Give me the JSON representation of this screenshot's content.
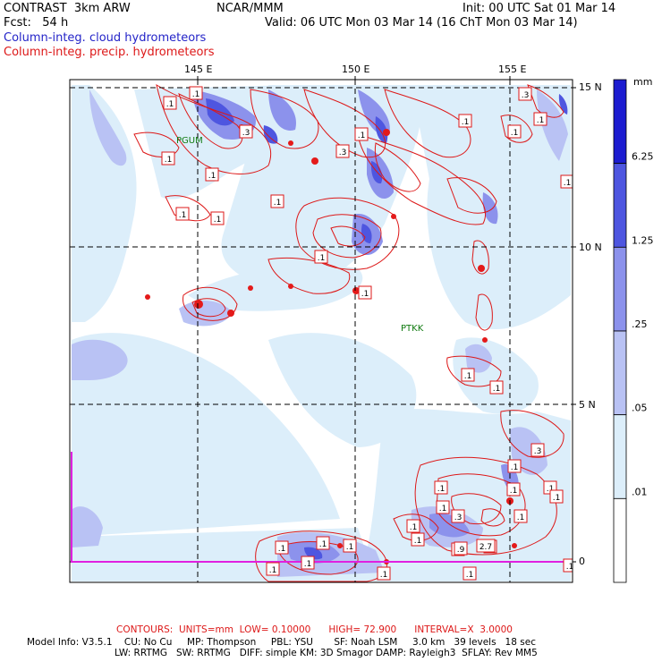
{
  "header": {
    "model": "CONTRAST  3km ARW",
    "org": "NCAR/MMM",
    "init": "Init: 00 UTC Sat 01 Mar 14",
    "fcst": "Fcst:   54 h",
    "valid": "Valid: 06 UTC Mon 03 Mar 14 (16 ChT Mon 03 Mar 14)",
    "field1": "Column-integ. cloud hydrometeors",
    "field2": "Column-integ. precip. hydrometeors"
  },
  "map": {
    "lon_labels": [
      "145 E",
      "150 E",
      "155 E"
    ],
    "lat_labels": [
      "15 N",
      "10 N",
      "5 N",
      "0"
    ],
    "stations": [
      {
        "name": "PGUM"
      },
      {
        "name": "PTKK"
      }
    ],
    "contour_labels": [
      ".1",
      ".1",
      ".3",
      ".1",
      ".1",
      ".3",
      ".1",
      ".1",
      ".1",
      ".1",
      ".1",
      ".1",
      ".1",
      ".1",
      ".1",
      ".3",
      ".1",
      ".1",
      ".1",
      ".1",
      ".1",
      ".1",
      ".1",
      ".1",
      ".1",
      ".1",
      ".1",
      ".3",
      ".1",
      ".1",
      ".1",
      ".1",
      ".1",
      ".1",
      ".1",
      ".1",
      ".1",
      ".3",
      ".9",
      "2.7",
      ".1",
      ".1"
    ]
  },
  "legend": {
    "unit": "mm",
    "levels": [
      "6.25",
      "1.25",
      ".25",
      ".05",
      ".01"
    ],
    "colors": [
      "#1c1cd0",
      "#4e56e0",
      "#8c92ec",
      "#b9c2f4",
      "#dceefa",
      "#ffffff"
    ]
  },
  "contours": {
    "label": "CONTOURS:  UNITS=mm  LOW= 0.10000      HIGH= 72.900      INTERVAL=X  3.0000"
  },
  "model_info": {
    "line1": "Model Info: V3.5.1    CU: No Cu     MP: Thompson     PBL: YSU       SF: Noah LSM     3.0 km   39 levels   18 sec",
    "line2": "LW: RRTMG   SW: RRTMG   DIFF: simple KM: 3D Smagor DAMP: Rayleigh3  SFLAY: Rev MM5"
  }
}
